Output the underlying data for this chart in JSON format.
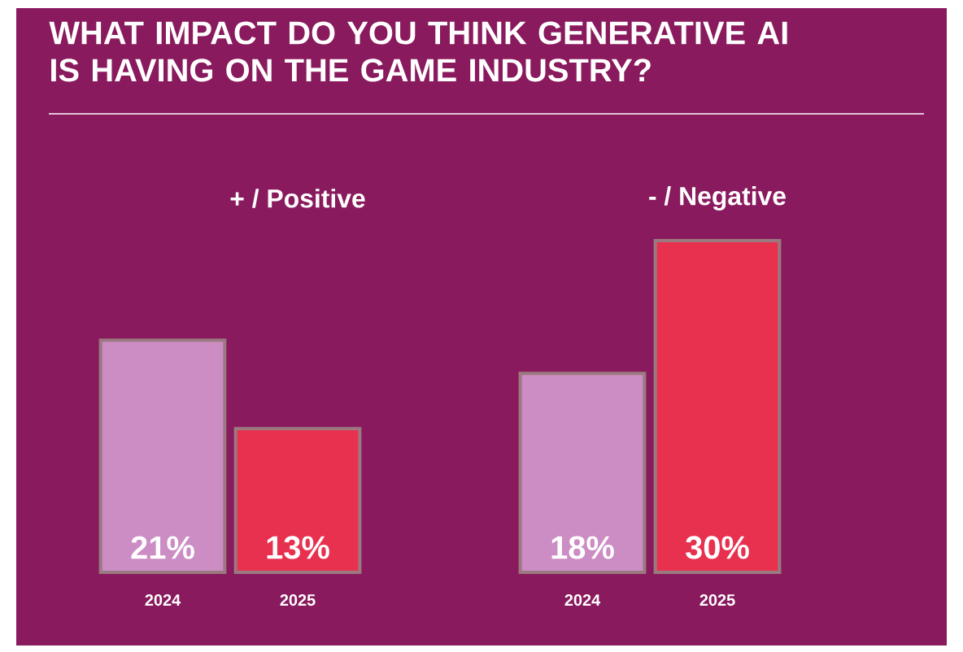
{
  "chart_data": [
    {
      "type": "bar",
      "title": "WHAT IMPACT DO YOU THINK GENERATIVE AI IS HAVING ON THE GAME INDUSTRY?",
      "subtitle": "+ / Positive",
      "categories": [
        "2024",
        "2025"
      ],
      "values": [
        21,
        13
      ],
      "colors": [
        "#cc8cc4",
        "#e8304f"
      ],
      "value_labels": [
        "21%",
        "13%"
      ]
    },
    {
      "type": "bar",
      "subtitle": "- / Negative",
      "categories": [
        "2024",
        "2025"
      ],
      "values": [
        18,
        30
      ],
      "colors": [
        "#cc8cc4",
        "#e8304f"
      ],
      "value_labels": [
        "18%",
        "30%"
      ]
    }
  ]
}
